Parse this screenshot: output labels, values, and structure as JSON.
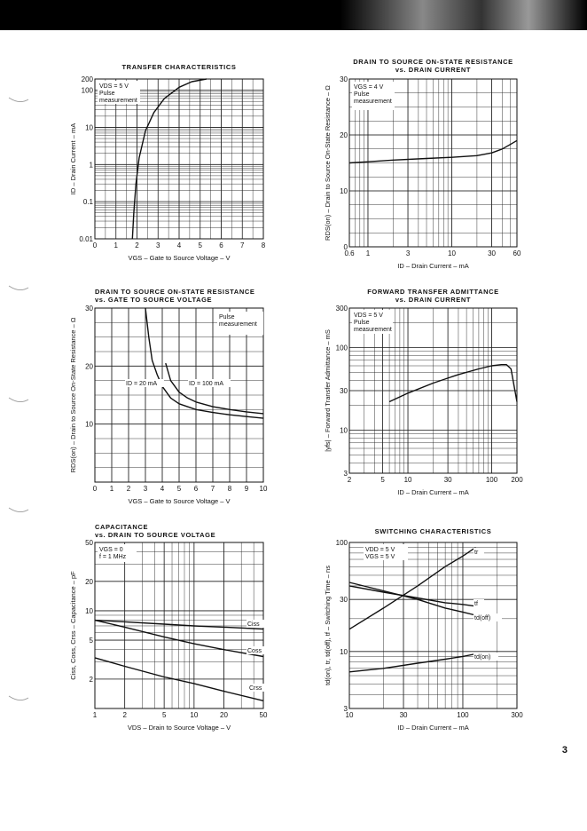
{
  "page": {
    "number": "3"
  },
  "chart_data": [
    {
      "type": "line",
      "title": [
        "TRANSFER CHARACTERISTICS"
      ],
      "xlabel": "VGS – Gate to Source Voltage – V",
      "ylabel": "ID – Drain Current – mA",
      "x_scale": "linear",
      "y_scale": "log",
      "xlim": [
        0,
        8
      ],
      "ylim": [
        0.01,
        200
      ],
      "x_ticks": [
        {
          "v": 0,
          "t": "0"
        },
        {
          "v": 1,
          "t": "1"
        },
        {
          "v": 2,
          "t": "2"
        },
        {
          "v": 3,
          "t": "3"
        },
        {
          "v": 4,
          "t": "4"
        },
        {
          "v": 5,
          "t": "5"
        },
        {
          "v": 6,
          "t": "6"
        },
        {
          "v": 7,
          "t": "7"
        },
        {
          "v": 8,
          "t": "8"
        }
      ],
      "y_ticks": [
        {
          "v": 0.01,
          "t": "0.01"
        },
        {
          "v": 0.1,
          "t": "0.1"
        },
        {
          "v": 1,
          "t": "1"
        },
        {
          "v": 10,
          "t": "10"
        },
        {
          "v": 100,
          "t": "100"
        },
        {
          "v": 200,
          "t": "200"
        }
      ],
      "conditions": [
        "VDS = 5 V",
        "Pulse",
        "measurement"
      ],
      "grid": true,
      "series": [
        {
          "x": [
            1.78,
            1.85,
            1.95,
            2.1,
            2.4,
            2.8,
            3.3,
            4.0,
            4.6,
            5.3
          ],
          "y": [
            0.01,
            0.05,
            0.3,
            1.5,
            8,
            25,
            60,
            120,
            170,
            200
          ]
        }
      ]
    },
    {
      "type": "line",
      "title": [
        "DRAIN TO SOURCE ON-STATE RESISTANCE",
        "vs. DRAIN CURRENT"
      ],
      "xlabel": "ID – Drain Current – mA",
      "ylabel": "RDS(on) – Drain to Source On-State Resistance – Ω",
      "x_scale": "log",
      "y_scale": "linear",
      "xlim": [
        0.6,
        60
      ],
      "ylim": [
        0,
        30
      ],
      "x_ticks": [
        {
          "v": 0.6,
          "t": "0.6"
        },
        {
          "v": 1,
          "t": "1"
        },
        {
          "v": 3,
          "t": "3"
        },
        {
          "v": 10,
          "t": "10"
        },
        {
          "v": 30,
          "t": "30"
        },
        {
          "v": 60,
          "t": "60"
        }
      ],
      "y_ticks": [
        {
          "v": 0,
          "t": "0"
        },
        {
          "v": 10,
          "t": "10"
        },
        {
          "v": 20,
          "t": "20"
        },
        {
          "v": 30,
          "t": "30"
        }
      ],
      "conditions": [
        "VGS = 4 V",
        "Pulse",
        "measurement"
      ],
      "grid": true,
      "series": [
        {
          "x": [
            0.6,
            1,
            2,
            5,
            10,
            20,
            30,
            40,
            50,
            60
          ],
          "y": [
            15,
            15.2,
            15.5,
            15.8,
            16,
            16.3,
            16.8,
            17.5,
            18.3,
            19
          ]
        }
      ]
    },
    {
      "type": "line",
      "title": [
        "DRAIN TO SOURCE ON-STATE RESISTANCE",
        "vs. GATE TO SOURCE VOLTAGE"
      ],
      "xlabel": "VGS – Gate to Source Voltage – V",
      "ylabel": "RDS(on) – Drain to Source On-State Resistance – Ω",
      "x_scale": "linear",
      "y_scale": "linear",
      "xlim": [
        0,
        10
      ],
      "ylim": [
        0,
        30
      ],
      "x_ticks": [
        {
          "v": 0,
          "t": "0"
        },
        {
          "v": 1,
          "t": "1"
        },
        {
          "v": 2,
          "t": "2"
        },
        {
          "v": 3,
          "t": "3"
        },
        {
          "v": 4,
          "t": "4"
        },
        {
          "v": 5,
          "t": "5"
        },
        {
          "v": 6,
          "t": "6"
        },
        {
          "v": 7,
          "t": "7"
        },
        {
          "v": 8,
          "t": "8"
        },
        {
          "v": 9,
          "t": "9"
        },
        {
          "v": 10,
          "t": "10"
        }
      ],
      "y_ticks": [
        {
          "v": 10,
          "t": "10"
        },
        {
          "v": 20,
          "t": "20"
        },
        {
          "v": 30,
          "t": "30"
        }
      ],
      "conditions": [
        "Pulse",
        "measurement"
      ],
      "grid": true,
      "series": [
        {
          "name": "ID = 20 mA",
          "x": [
            3.0,
            3.2,
            3.4,
            3.7,
            4.0,
            4.5,
            5,
            6,
            7,
            8,
            9,
            10
          ],
          "y": [
            30,
            25,
            21,
            18.5,
            16.5,
            14.5,
            13.5,
            12.5,
            12,
            11.6,
            11.3,
            11
          ]
        },
        {
          "name": "ID = 100 mA",
          "x": [
            4.2,
            4.5,
            5,
            5.5,
            6,
            7,
            8,
            9,
            10
          ],
          "y": [
            20.5,
            17.5,
            15.5,
            14.5,
            13.8,
            13,
            12.5,
            12.1,
            11.8
          ]
        }
      ]
    },
    {
      "type": "line",
      "title": [
        "FORWARD TRANSFER ADMITTANCE",
        "vs. DRAIN CURRENT"
      ],
      "xlabel": "ID – Drain Current – mA",
      "ylabel": "|yfs| – Forward Transfer Admittance – mS",
      "x_scale": "log",
      "y_scale": "log",
      "xlim": [
        2,
        200
      ],
      "ylim": [
        3,
        300
      ],
      "x_ticks": [
        {
          "v": 2,
          "t": "2"
        },
        {
          "v": 5,
          "t": "5"
        },
        {
          "v": 10,
          "t": "10"
        },
        {
          "v": 30,
          "t": "30"
        },
        {
          "v": 100,
          "t": "100"
        },
        {
          "v": 200,
          "t": "200"
        }
      ],
      "y_ticks": [
        {
          "v": 3,
          "t": "3"
        },
        {
          "v": 10,
          "t": "10"
        },
        {
          "v": 30,
          "t": "30"
        },
        {
          "v": 100,
          "t": "100"
        },
        {
          "v": 300,
          "t": "300"
        }
      ],
      "conditions": [
        "VDS = 5 V",
        "Pulse",
        "measurement"
      ],
      "grid": true,
      "series": [
        {
          "x": [
            6,
            10,
            20,
            40,
            70,
            100,
            130,
            150,
            170,
            200
          ],
          "y": [
            22,
            28,
            37,
            47,
            55,
            60,
            62,
            62,
            55,
            22
          ]
        }
      ]
    },
    {
      "type": "line",
      "title": [
        "CAPACITANCE",
        "vs. DRAIN TO SOURCE VOLTAGE"
      ],
      "xlabel": "VDS – Drain to Source Voltage – V",
      "ylabel": "Ciss, Coss, Crss – Capacitance – pF",
      "x_scale": "log",
      "y_scale": "log",
      "xlim": [
        1,
        50
      ],
      "ylim": [
        1,
        50
      ],
      "x_ticks": [
        {
          "v": 1,
          "t": "1"
        },
        {
          "v": 2,
          "t": "2"
        },
        {
          "v": 5,
          "t": "5"
        },
        {
          "v": 10,
          "t": "10"
        },
        {
          "v": 20,
          "t": "20"
        },
        {
          "v": 50,
          "t": "50"
        }
      ],
      "y_ticks": [
        {
          "v": 2,
          "t": "2"
        },
        {
          "v": 5,
          "t": "5"
        },
        {
          "v": 10,
          "t": "10"
        },
        {
          "v": 20,
          "t": "20"
        },
        {
          "v": 50,
          "t": "50"
        }
      ],
      "conditions": [
        "VGS = 0",
        "f = 1 MHz"
      ],
      "grid": true,
      "series": [
        {
          "name": "Ciss",
          "x": [
            1,
            2,
            5,
            10,
            20,
            50
          ],
          "y": [
            8,
            7.7,
            7.3,
            7.0,
            6.8,
            6.5
          ]
        },
        {
          "name": "Coss",
          "x": [
            1,
            2,
            5,
            10,
            20,
            50
          ],
          "y": [
            8,
            6.8,
            5.4,
            4.6,
            4.0,
            3.4
          ]
        },
        {
          "name": "Crss",
          "x": [
            1,
            2,
            5,
            10,
            20,
            50
          ],
          "y": [
            3.3,
            2.7,
            2.1,
            1.8,
            1.5,
            1.2
          ]
        }
      ]
    },
    {
      "type": "line",
      "title": [
        "SWITCHING CHARACTERISTICS"
      ],
      "xlabel": "ID – Drain Current – mA",
      "ylabel": "td(on), tr, td(off), tf – Switching Time – ns",
      "x_scale": "log",
      "y_scale": "log",
      "xlim": [
        10,
        300
      ],
      "ylim": [
        3,
        100
      ],
      "x_ticks": [
        {
          "v": 10,
          "t": "10"
        },
        {
          "v": 30,
          "t": "30"
        },
        {
          "v": 100,
          "t": "100"
        },
        {
          "v": 300,
          "t": "300"
        }
      ],
      "y_ticks": [
        {
          "v": 3,
          "t": "3"
        },
        {
          "v": 10,
          "t": "10"
        },
        {
          "v": 30,
          "t": "30"
        },
        {
          "v": 100,
          "t": "100"
        }
      ],
      "conditions": [
        "VDD = 5 V",
        "VGS = 5 V"
      ],
      "grid": true,
      "series": [
        {
          "name": "tr",
          "x": [
            10,
            20,
            40,
            70,
            100,
            130
          ],
          "y": [
            16,
            25,
            40,
            60,
            75,
            90
          ]
        },
        {
          "name": "tf",
          "x": [
            10,
            20,
            40,
            70,
            100,
            130
          ],
          "y": [
            40,
            35,
            31,
            28,
            27,
            26
          ]
        },
        {
          "name": "td(off)",
          "x": [
            10,
            20,
            40,
            70,
            100,
            130
          ],
          "y": [
            43,
            36,
            30,
            25,
            23,
            21.5
          ]
        },
        {
          "name": "td(on)",
          "x": [
            10,
            20,
            40,
            70,
            100,
            130
          ],
          "y": [
            6.5,
            7,
            7.8,
            8.5,
            9,
            9.5
          ]
        }
      ]
    }
  ]
}
